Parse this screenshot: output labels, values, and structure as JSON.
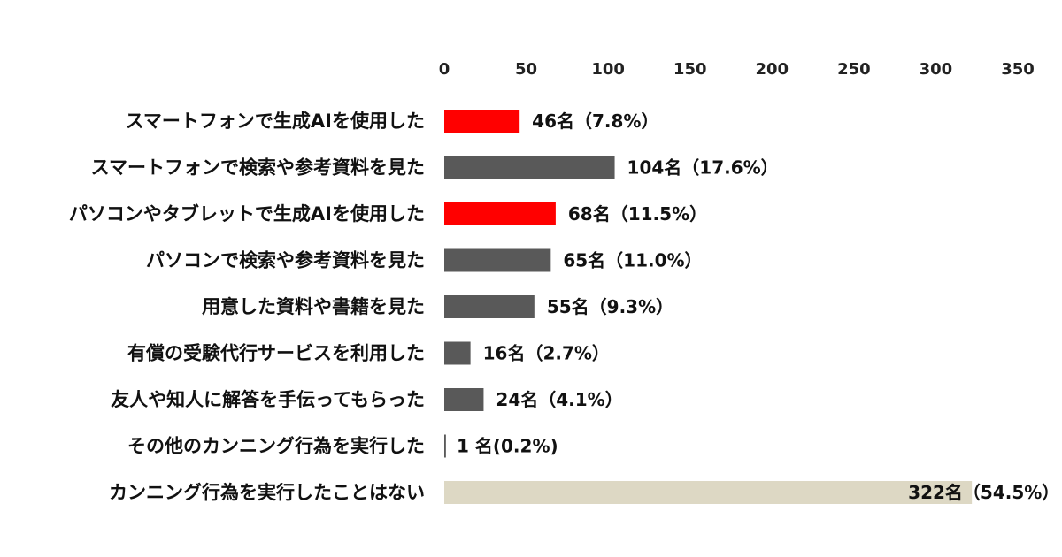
{
  "chart_data": {
    "type": "bar",
    "orientation": "horizontal",
    "xlim": [
      0,
      350
    ],
    "ticks": [
      0,
      50,
      100,
      150,
      200,
      250,
      300,
      350
    ],
    "tick_position": "top",
    "grid": false,
    "legend": "none",
    "colors": {
      "highlight": "#ff0000",
      "default": "#595959",
      "none": "#ddd8c4"
    },
    "categories": [
      "スマートフォンで生成AIを使用した",
      "スマートフォンで検索や参考資料を見た",
      "パソコンやタブレットで生成AIを使用した",
      "パソコンで検索や参考資料を見た",
      "用意した資料や書籍を見た",
      "有償の受験代行サービスを利用した",
      "友人や知人に解答を手伝ってもらった",
      "その他のカンニング行為を実行した",
      "カンニング行為を実行したことはない"
    ],
    "values": [
      46,
      104,
      68,
      65,
      55,
      16,
      24,
      1,
      322
    ],
    "value_labels": [
      "46名（7.8%）",
      "104名（17.6%）",
      "68名（11.5%）",
      "65名（11.0%）",
      "55名（9.3%）",
      "16名（2.7%）",
      "24名（4.1%）",
      "1 名(0.2%)",
      "322名（54.5%）"
    ],
    "bar_color_keys": [
      "highlight",
      "default",
      "highlight",
      "default",
      "default",
      "default",
      "default",
      "default",
      "none"
    ]
  }
}
